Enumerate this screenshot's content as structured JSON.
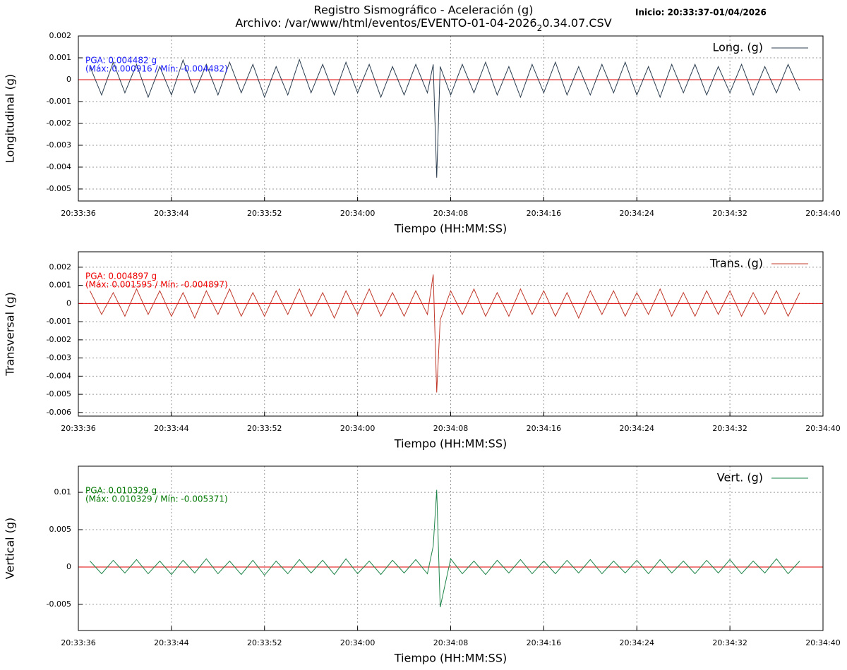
{
  "header": {
    "title": "Registro Sismográfico - Aceleración (g)",
    "subtitle": [
      "Archivo: /var/www/html/eventos/EVENTO-01-04-2026",
      "2",
      "0.34.07.CSV"
    ],
    "start": "Inicio: 20:33:37-01/04/2026"
  },
  "chart_data": [
    {
      "type": "line",
      "y_label": "Longitudinal (g)",
      "x_label": "Tiempo (HH:MM:SS)",
      "annotations": [
        "PGA: 0.004482 g",
        "(Máx: 0.000916 / Mín: -0.004482)"
      ],
      "annotation_color": "#1a1aff",
      "legend": "upper right",
      "grid": true,
      "zero_line": {
        "value": 0,
        "color": "#e00000"
      },
      "xlim": [
        74016,
        74080
      ],
      "xticks": [
        {
          "value": 74016,
          "label": "20:33:36"
        },
        {
          "value": 74024,
          "label": "20:33:44"
        },
        {
          "value": 74032,
          "label": "20:33:52"
        },
        {
          "value": 74040,
          "label": "20:34:00"
        },
        {
          "value": 74048,
          "label": "20:34:08"
        },
        {
          "value": 74056,
          "label": "20:34:16"
        },
        {
          "value": 74064,
          "label": "20:34:24"
        },
        {
          "value": 74072,
          "label": "20:34:32"
        },
        {
          "value": 74080,
          "label": "20:34:40"
        }
      ],
      "ylim": [
        -0.00555,
        0.002
      ],
      "yticks": [
        0.002,
        0.001,
        0,
        -0.001,
        -0.002,
        -0.003,
        -0.004,
        -0.005
      ],
      "x": [
        74017,
        74018,
        74019,
        74020,
        74021,
        74022,
        74023,
        74024,
        74025,
        74026,
        74027,
        74028,
        74029,
        74030,
        74031,
        74032,
        74033,
        74034,
        74035,
        74036,
        74037,
        74038,
        74039,
        74040,
        74041,
        74042,
        74043,
        74044,
        74045,
        74046,
        74046.5,
        74046.8,
        74047.1,
        74048,
        74049,
        74050,
        74051,
        74052,
        74053,
        74054,
        74055,
        74056,
        74057,
        74058,
        74059,
        74060,
        74061,
        74062,
        74063,
        74064,
        74065,
        74066,
        74067,
        74068,
        74069,
        74070,
        74071,
        74072,
        74073,
        74074,
        74075,
        74076,
        74077,
        74078
      ],
      "series": [
        {
          "name": "Long. (g)",
          "color": "#2c3e50",
          "values": [
            0.0006,
            -0.0007,
            0.0008,
            -0.0006,
            0.0007,
            -0.0008,
            0.0006,
            -0.0007,
            0.0009,
            -0.0006,
            0.0007,
            -0.0007,
            0.0008,
            -0.0006,
            0.0007,
            -0.0008,
            0.0006,
            -0.0007,
            0.000916,
            -0.0006,
            0.0007,
            -0.0007,
            0.0008,
            -0.0006,
            0.0007,
            -0.0008,
            0.0006,
            -0.0007,
            0.0007,
            -0.0006,
            0.0007,
            -0.004482,
            0.0006,
            -0.0007,
            0.0007,
            -0.0006,
            0.0008,
            -0.0007,
            0.0006,
            -0.0008,
            0.0007,
            -0.0006,
            0.0008,
            -0.0007,
            0.0006,
            -0.0007,
            0.0007,
            -0.0006,
            0.0008,
            -0.0007,
            0.0006,
            -0.0008,
            0.0007,
            -0.0006,
            0.0007,
            -0.0007,
            0.0006,
            -0.0006,
            0.0007,
            -0.0007,
            0.0006,
            -0.0006,
            0.0007,
            -0.0005
          ]
        }
      ]
    },
    {
      "type": "line",
      "y_label": "Transversal (g)",
      "x_label": "Tiempo (HH:MM:SS)",
      "annotations": [
        "PGA: 0.004897 g",
        "(Máx: 0.001595 / Mín: -0.004897)"
      ],
      "annotation_color": "#ee0000",
      "legend": "upper right",
      "grid": true,
      "zero_line": {
        "value": 0,
        "color": "#e00000"
      },
      "xlim": [
        74016,
        74080
      ],
      "xticks": [
        {
          "value": 74016,
          "label": "20:33:36"
        },
        {
          "value": 74024,
          "label": "20:33:44"
        },
        {
          "value": 74032,
          "label": "20:33:52"
        },
        {
          "value": 74040,
          "label": "20:34:00"
        },
        {
          "value": 74048,
          "label": "20:34:08"
        },
        {
          "value": 74056,
          "label": "20:34:16"
        },
        {
          "value": 74064,
          "label": "20:34:24"
        },
        {
          "value": 74072,
          "label": "20:34:32"
        },
        {
          "value": 74080,
          "label": "20:34:40"
        }
      ],
      "ylim": [
        -0.0062,
        0.00285
      ],
      "yticks": [
        0.002,
        0.001,
        0,
        -0.001,
        -0.002,
        -0.003,
        -0.004,
        -0.005,
        -0.006
      ],
      "x": [
        74017,
        74018,
        74019,
        74020,
        74021,
        74022,
        74023,
        74024,
        74025,
        74026,
        74027,
        74028,
        74029,
        74030,
        74031,
        74032,
        74033,
        74034,
        74035,
        74036,
        74037,
        74038,
        74039,
        74040,
        74041,
        74042,
        74043,
        74044,
        74045,
        74046,
        74046.5,
        74046.8,
        74047.1,
        74048,
        74049,
        74050,
        74051,
        74052,
        74053,
        74054,
        74055,
        74056,
        74057,
        74058,
        74059,
        74060,
        74061,
        74062,
        74063,
        74064,
        74065,
        74066,
        74067,
        74068,
        74069,
        74070,
        74071,
        74072,
        74073,
        74074,
        74075,
        74076,
        74077,
        74078
      ],
      "series": [
        {
          "name": "Trans. (g)",
          "color": "#c0392b",
          "values": [
            0.0007,
            -0.0006,
            0.0006,
            -0.0007,
            0.0008,
            -0.0006,
            0.0007,
            -0.0007,
            0.0006,
            -0.0008,
            0.0007,
            -0.0006,
            0.0008,
            -0.0007,
            0.0006,
            -0.0007,
            0.0007,
            -0.0006,
            0.0008,
            -0.0007,
            0.0006,
            -0.0008,
            0.0007,
            -0.0006,
            0.0008,
            -0.0007,
            0.0006,
            -0.0007,
            0.0007,
            -0.0006,
            0.001595,
            -0.004897,
            -0.0009,
            0.0007,
            -0.0006,
            0.0008,
            -0.0007,
            0.0006,
            -0.0007,
            0.0008,
            -0.0006,
            0.0007,
            -0.0007,
            0.0006,
            -0.0008,
            0.0007,
            -0.0006,
            0.0007,
            -0.0007,
            0.0006,
            -0.0006,
            0.0008,
            -0.0007,
            0.0006,
            -0.0007,
            0.0007,
            -0.0006,
            0.0007,
            -0.0007,
            0.0006,
            -0.0006,
            0.0007,
            -0.0007,
            0.0006
          ]
        }
      ]
    },
    {
      "type": "line",
      "y_label": "Vertical (g)",
      "x_label": "Tiempo (HH:MM:SS)",
      "annotations": [
        "PGA: 0.010329 g",
        "(Máx: 0.010329 / Mín: -0.005371)"
      ],
      "annotation_color": "#007700",
      "legend": "upper right",
      "grid": true,
      "zero_line": {
        "value": 0,
        "color": "#e00000"
      },
      "xlim": [
        74016,
        74080
      ],
      "xticks": [
        {
          "value": 74016,
          "label": "20:33:36"
        },
        {
          "value": 74024,
          "label": "20:33:44"
        },
        {
          "value": 74032,
          "label": "20:33:52"
        },
        {
          "value": 74040,
          "label": "20:34:00"
        },
        {
          "value": 74048,
          "label": "20:34:08"
        },
        {
          "value": 74056,
          "label": "20:34:16"
        },
        {
          "value": 74064,
          "label": "20:34:24"
        },
        {
          "value": 74072,
          "label": "20:34:32"
        },
        {
          "value": 74080,
          "label": "20:34:40"
        }
      ],
      "ylim": [
        -0.0085,
        0.0135
      ],
      "yticks": [
        0.01,
        0.005,
        0,
        -0.005
      ],
      "x": [
        74017,
        74018,
        74019,
        74020,
        74021,
        74022,
        74023,
        74024,
        74025,
        74026,
        74027,
        74028,
        74029,
        74030,
        74031,
        74032,
        74033,
        74034,
        74035,
        74036,
        74037,
        74038,
        74039,
        74040,
        74041,
        74042,
        74043,
        74044,
        74045,
        74046,
        74046.5,
        74046.8,
        74047.1,
        74048,
        74049,
        74050,
        74051,
        74052,
        74053,
        74054,
        74055,
        74056,
        74057,
        74058,
        74059,
        74060,
        74061,
        74062,
        74063,
        74064,
        74065,
        74066,
        74067,
        74068,
        74069,
        74070,
        74071,
        74072,
        74073,
        74074,
        74075,
        74076,
        74077,
        74078
      ],
      "series": [
        {
          "name": "Vert. (g)",
          "color": "#1e8449",
          "values": [
            0.0008,
            -0.0009,
            0.0009,
            -0.0008,
            0.001,
            -0.0009,
            0.0008,
            -0.001,
            0.0009,
            -0.0008,
            0.0011,
            -0.0009,
            0.0008,
            -0.001,
            0.0009,
            -0.0011,
            0.0008,
            -0.0009,
            0.001,
            -0.0008,
            0.0009,
            -0.001,
            0.0011,
            -0.0009,
            0.0008,
            -0.001,
            0.0009,
            -0.0008,
            0.001,
            -0.0009,
            0.0028,
            0.010329,
            -0.005371,
            0.0011,
            -0.0009,
            0.0008,
            -0.001,
            0.0009,
            -0.0008,
            0.001,
            -0.0009,
            0.0008,
            -0.0009,
            0.0009,
            -0.0008,
            0.001,
            -0.0009,
            0.0008,
            -0.0008,
            0.0009,
            -0.0009,
            0.001,
            -0.0008,
            0.0008,
            -0.0009,
            0.0009,
            -0.0008,
            0.001,
            -0.0009,
            0.0008,
            -0.0008,
            0.0011,
            -0.0009,
            0.0008
          ]
        }
      ]
    }
  ]
}
